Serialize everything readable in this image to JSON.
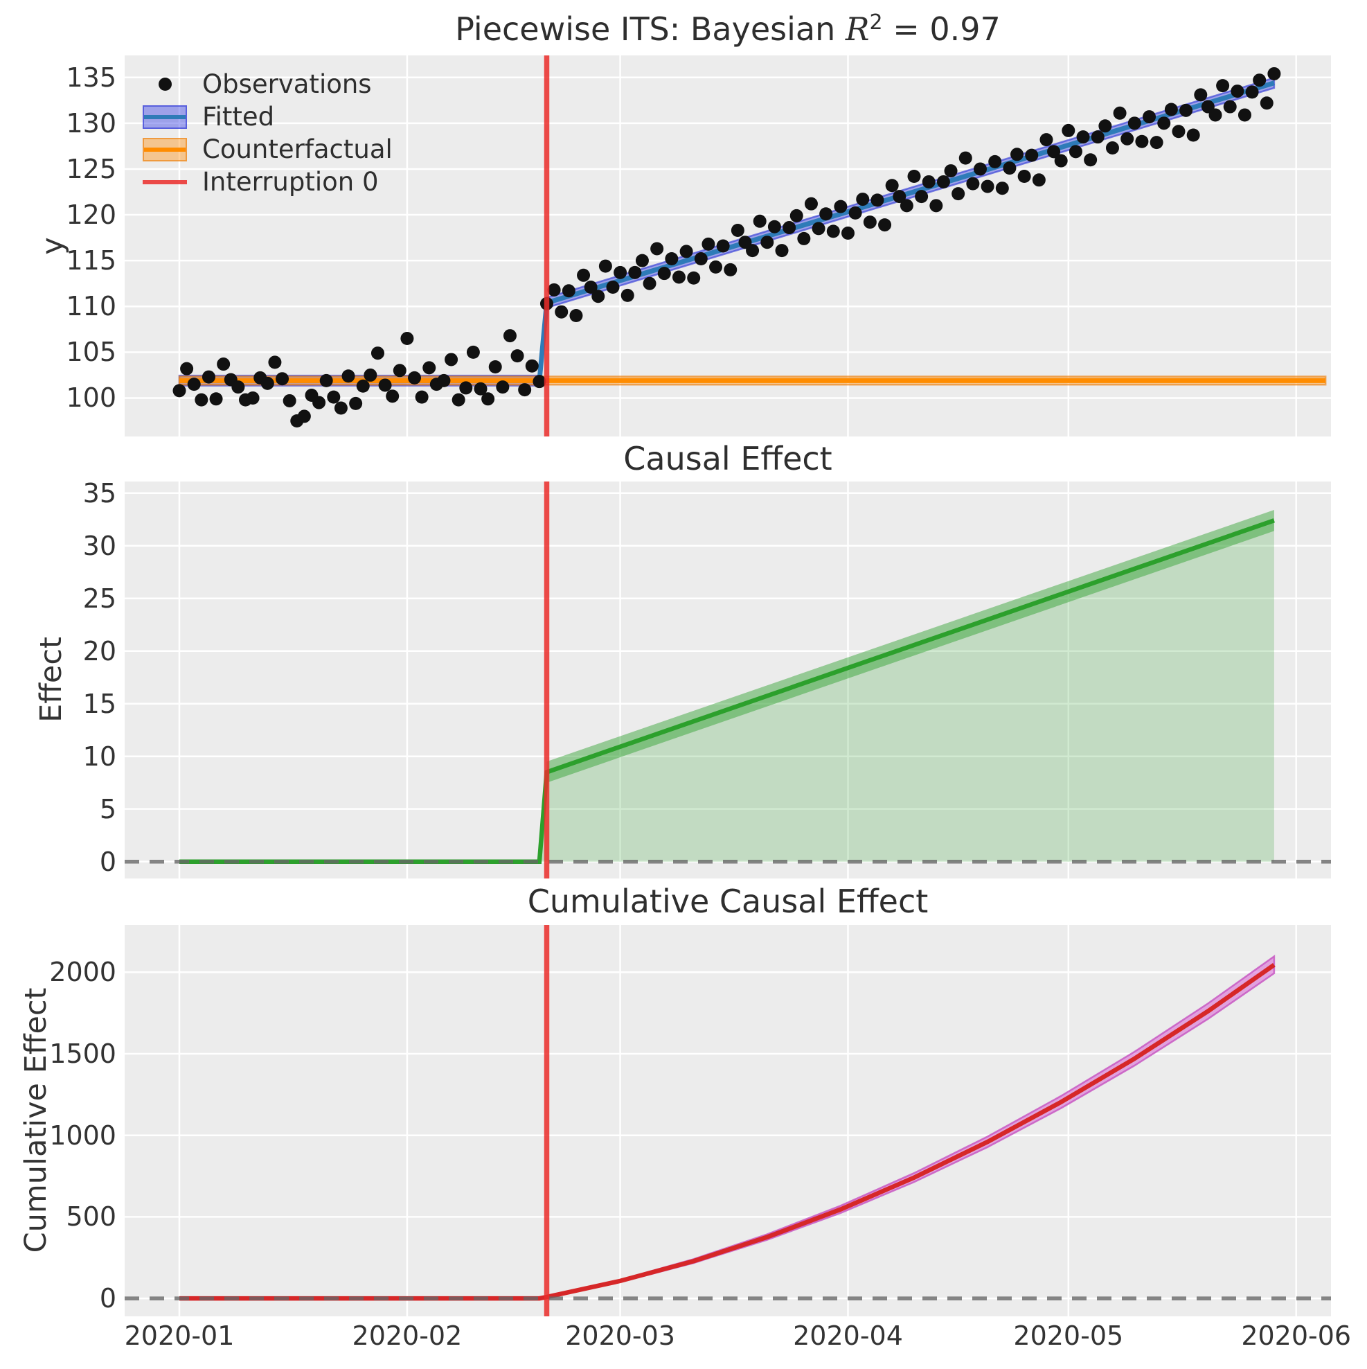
{
  "title": {
    "prefix": "Piecewise ITS: Bayesian ",
    "math_var": "R",
    "exponent": "2",
    "suffix": " = 0.97"
  },
  "colors": {
    "panel_bg": "#ececec",
    "grid": "#ffffff",
    "text": "#333333",
    "observations": "#111111",
    "fitted_line": "#2e7bb8",
    "fitted_band": "rgba(62,72,230,0.45)",
    "fitted_band_edge": "rgba(50,60,215,0.65)",
    "counterfactual_line": "#ff8c00",
    "counterfactual_band": "rgba(255,150,30,0.45)",
    "counterfactual_band_edge": "rgba(235,125,10,0.6)",
    "interruption": "rgba(235,45,42,0.85)",
    "effect_line": "#2ca02c",
    "effect_band": "rgba(44,160,44,0.45)",
    "effect_fill": "rgba(44,160,44,0.22)",
    "cumulative_line": "#d62728",
    "cumulative_band": "rgba(218,112,214,0.6)",
    "cumulative_band_edge": "rgba(198,82,192,0.8)",
    "zero_line": "#666666"
  },
  "x_axis": {
    "tick_labels": [
      "2020-01",
      "2020-02",
      "2020-03",
      "2020-04",
      "2020-05",
      "2020-06"
    ],
    "tick_days": [
      0,
      31,
      60,
      91,
      121,
      152
    ],
    "xlim_days": [
      -7.45,
      156.7
    ]
  },
  "legend": [
    {
      "label": "Observations",
      "type": "marker"
    },
    {
      "label": "Fitted",
      "type": "band-line"
    },
    {
      "label": "Counterfactual",
      "type": "band-line"
    },
    {
      "label": "Interruption 0",
      "type": "line"
    }
  ],
  "panels": [
    {
      "title": "",
      "ylabel": "y",
      "yticks": [
        100,
        105,
        110,
        115,
        120,
        125,
        130,
        135
      ],
      "ylim": [
        95.8,
        137.4
      ]
    },
    {
      "title": "Causal Effect",
      "ylabel": "Effect",
      "yticks": [
        0,
        5,
        10,
        15,
        20,
        25,
        30,
        35
      ],
      "ylim": [
        -1.6,
        36.1
      ]
    },
    {
      "title": "Cumulative Causal Effect",
      "ylabel": "Cumulative Effect",
      "yticks": [
        0,
        500,
        1000,
        1500,
        2000
      ],
      "ylim": [
        -110,
        2290
      ]
    }
  ],
  "interruption": {
    "label": "Interruption 0",
    "day": 50
  },
  "chart_data": [
    {
      "type": "scatter",
      "title": "Piecewise ITS: Bayesian R^2 = 0.97",
      "ylabel": "y",
      "x_unit": "days since 2020-01-01",
      "observations": [
        [
          0,
          100.8
        ],
        [
          1,
          103.2
        ],
        [
          2,
          101.5
        ],
        [
          3,
          99.8
        ],
        [
          4,
          102.3
        ],
        [
          5,
          99.9
        ],
        [
          6,
          103.7
        ],
        [
          7,
          102.0
        ],
        [
          8,
          101.2
        ],
        [
          9,
          99.8
        ],
        [
          10,
          100.0
        ],
        [
          11,
          102.2
        ],
        [
          12,
          101.6
        ],
        [
          13,
          103.9
        ],
        [
          14,
          102.1
        ],
        [
          15,
          99.7
        ],
        [
          16,
          97.5
        ],
        [
          17,
          98.0
        ],
        [
          18,
          100.3
        ],
        [
          19,
          99.5
        ],
        [
          20,
          101.9
        ],
        [
          21,
          100.1
        ],
        [
          22,
          98.9
        ],
        [
          23,
          102.4
        ],
        [
          24,
          99.4
        ],
        [
          25,
          101.3
        ],
        [
          26,
          102.5
        ],
        [
          27,
          104.9
        ],
        [
          28,
          101.4
        ],
        [
          29,
          100.2
        ],
        [
          30,
          103.0
        ],
        [
          31,
          106.5
        ],
        [
          32,
          102.2
        ],
        [
          33,
          100.1
        ],
        [
          34,
          103.3
        ],
        [
          35,
          101.5
        ],
        [
          36,
          101.9
        ],
        [
          37,
          104.2
        ],
        [
          38,
          99.8
        ],
        [
          39,
          101.1
        ],
        [
          40,
          105.0
        ],
        [
          41,
          101.0
        ],
        [
          42,
          99.9
        ],
        [
          43,
          103.4
        ],
        [
          44,
          101.2
        ],
        [
          45,
          106.8
        ],
        [
          46,
          104.6
        ],
        [
          47,
          100.9
        ],
        [
          48,
          103.5
        ],
        [
          49,
          101.8
        ],
        [
          50,
          110.3
        ],
        [
          51,
          111.8
        ],
        [
          52,
          109.4
        ],
        [
          53,
          111.7
        ],
        [
          54,
          109.0
        ],
        [
          55,
          113.4
        ],
        [
          56,
          112.1
        ],
        [
          57,
          111.1
        ],
        [
          58,
          114.4
        ],
        [
          59,
          112.1
        ],
        [
          60,
          113.7
        ],
        [
          61,
          111.2
        ],
        [
          62,
          113.7
        ],
        [
          63,
          115.0
        ],
        [
          64,
          112.5
        ],
        [
          65,
          116.3
        ],
        [
          66,
          113.6
        ],
        [
          67,
          115.2
        ],
        [
          68,
          113.2
        ],
        [
          69,
          116.0
        ],
        [
          70,
          113.1
        ],
        [
          71,
          115.2
        ],
        [
          72,
          116.8
        ],
        [
          73,
          114.3
        ],
        [
          74,
          116.6
        ],
        [
          75,
          114.0
        ],
        [
          76,
          118.3
        ],
        [
          77,
          117.0
        ],
        [
          78,
          116.1
        ],
        [
          79,
          119.3
        ],
        [
          80,
          117.0
        ],
        [
          81,
          118.7
        ],
        [
          82,
          116.1
        ],
        [
          83,
          118.6
        ],
        [
          84,
          119.9
        ],
        [
          85,
          117.4
        ],
        [
          86,
          121.2
        ],
        [
          87,
          118.5
        ],
        [
          88,
          120.1
        ],
        [
          89,
          118.2
        ],
        [
          90,
          120.9
        ],
        [
          91,
          118.0
        ],
        [
          92,
          120.2
        ],
        [
          93,
          121.7
        ],
        [
          94,
          119.2
        ],
        [
          95,
          121.6
        ],
        [
          96,
          118.9
        ],
        [
          97,
          123.2
        ],
        [
          98,
          122.0
        ],
        [
          99,
          121.0
        ],
        [
          100,
          124.2
        ],
        [
          101,
          122.0
        ],
        [
          102,
          123.6
        ],
        [
          103,
          121.0
        ],
        [
          104,
          123.6
        ],
        [
          105,
          124.8
        ],
        [
          106,
          122.3
        ],
        [
          107,
          126.2
        ],
        [
          108,
          123.4
        ],
        [
          109,
          125.0
        ],
        [
          110,
          123.1
        ],
        [
          111,
          125.8
        ],
        [
          112,
          122.9
        ],
        [
          113,
          125.1
        ],
        [
          114,
          126.6
        ],
        [
          115,
          124.2
        ],
        [
          116,
          126.5
        ],
        [
          117,
          123.8
        ],
        [
          118,
          128.2
        ],
        [
          119,
          126.9
        ],
        [
          120,
          125.9
        ],
        [
          121,
          129.2
        ],
        [
          122,
          126.9
        ],
        [
          123,
          128.5
        ],
        [
          124,
          126.0
        ],
        [
          125,
          128.5
        ],
        [
          126,
          129.7
        ],
        [
          127,
          127.3
        ],
        [
          128,
          131.1
        ],
        [
          129,
          128.3
        ],
        [
          130,
          130.0
        ],
        [
          131,
          128.0
        ],
        [
          132,
          130.7
        ],
        [
          133,
          127.9
        ],
        [
          134,
          130.0
        ],
        [
          135,
          131.5
        ],
        [
          136,
          129.1
        ],
        [
          137,
          131.4
        ],
        [
          138,
          128.7
        ],
        [
          139,
          133.1
        ],
        [
          140,
          131.8
        ],
        [
          141,
          130.9
        ],
        [
          142,
          134.1
        ],
        [
          143,
          131.8
        ],
        [
          144,
          133.5
        ],
        [
          145,
          130.9
        ],
        [
          146,
          133.4
        ],
        [
          147,
          134.7
        ],
        [
          148,
          132.2
        ],
        [
          149,
          135.4
        ]
      ],
      "fitted": {
        "pre": {
          "x": [
            0,
            49
          ],
          "y": [
            101.9,
            101.9
          ]
        },
        "post": {
          "x": [
            49,
            50,
            149
          ],
          "y": [
            101.9,
            110.4,
            134.4
          ]
        },
        "band_halfwidth": 0.55
      },
      "counterfactual": {
        "x": [
          0,
          156
        ],
        "y": [
          101.9,
          101.9
        ],
        "band_halfwidth": 0.45
      },
      "interruption_day": 50
    },
    {
      "type": "area",
      "title": "Causal Effect",
      "ylabel": "Effect",
      "line": {
        "x": [
          0,
          49,
          50,
          149
        ],
        "y": [
          0,
          0,
          8.5,
          32.4
        ]
      },
      "band": {
        "x": [
          50,
          149
        ],
        "halfwidth": [
          1.0,
          1.0
        ]
      },
      "fill_to_zero": true,
      "zero_line": 0,
      "interruption_day": 50
    },
    {
      "type": "line",
      "title": "Cumulative Causal Effect",
      "ylabel": "Cumulative Effect",
      "points": [
        [
          0,
          0
        ],
        [
          49,
          0
        ],
        [
          50,
          8.5
        ],
        [
          60,
          107
        ],
        [
          70,
          229
        ],
        [
          80,
          376
        ],
        [
          90,
          546
        ],
        [
          100,
          741
        ],
        [
          110,
          960
        ],
        [
          120,
          1204
        ],
        [
          130,
          1470
        ],
        [
          140,
          1761
        ],
        [
          149,
          2045
        ]
      ],
      "band_halfwidth": [
        [
          50,
          2
        ],
        [
          149,
          52
        ]
      ],
      "zero_line": 0,
      "interruption_day": 50
    }
  ]
}
